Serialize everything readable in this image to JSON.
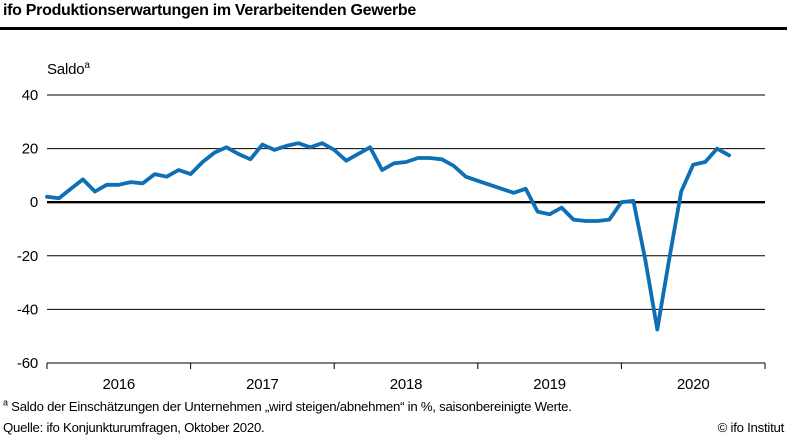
{
  "header": {
    "title": "ifo Produktionserwartungen im Verarbeitenden Gewerbe"
  },
  "y_unit": {
    "label": "Saldo",
    "sup": "a"
  },
  "chart_data": {
    "type": "line",
    "title": "ifo Produktionserwartungen im Verarbeitenden Gewerbe",
    "ylabel": "Saldo",
    "ylim": [
      -60,
      40
    ],
    "yticks": [
      40,
      20,
      0,
      -20,
      -40,
      -60
    ],
    "xticklabels": [
      "2016",
      "2017",
      "2018",
      "2019",
      "2020"
    ],
    "x_axis_span_months": 60,
    "frequency": "monthly",
    "start": "2016-01",
    "end": "2020-10",
    "grid": "horizontal",
    "legend": "none",
    "line_color": "#0e6fb4",
    "axis_color": "#000000",
    "series": [
      {
        "name": "Produktionserwartungen (Saldo, saisonbereinigt)",
        "values": [
          2,
          1.5,
          5,
          8.5,
          4,
          6.5,
          6.5,
          7.5,
          7,
          10.5,
          9.5,
          12,
          10.5,
          15,
          18.5,
          20.5,
          18,
          16,
          21.5,
          19.5,
          21,
          22,
          20.5,
          22,
          19.5,
          15.5,
          18,
          20.5,
          12,
          14.5,
          15,
          16.5,
          16.5,
          16,
          13.5,
          9.5,
          8,
          6.5,
          5,
          3.5,
          5,
          -3.5,
          -4.5,
          -2,
          -6.5,
          -7,
          -7,
          -6.5,
          0,
          0.5,
          -21.5,
          -47.5,
          -21,
          4,
          14,
          15,
          20,
          17.5
        ]
      }
    ]
  },
  "footer": {
    "footnote_sup": "a",
    "footnote_text": " Saldo der Einschätzungen der Unternehmen „wird steigen/abnehmen“ in %, saisonbereinigte Werte.",
    "source": "Quelle: ifo Konjunkturumfragen, Oktober 2020.",
    "copyright": "© ifo Institut"
  }
}
